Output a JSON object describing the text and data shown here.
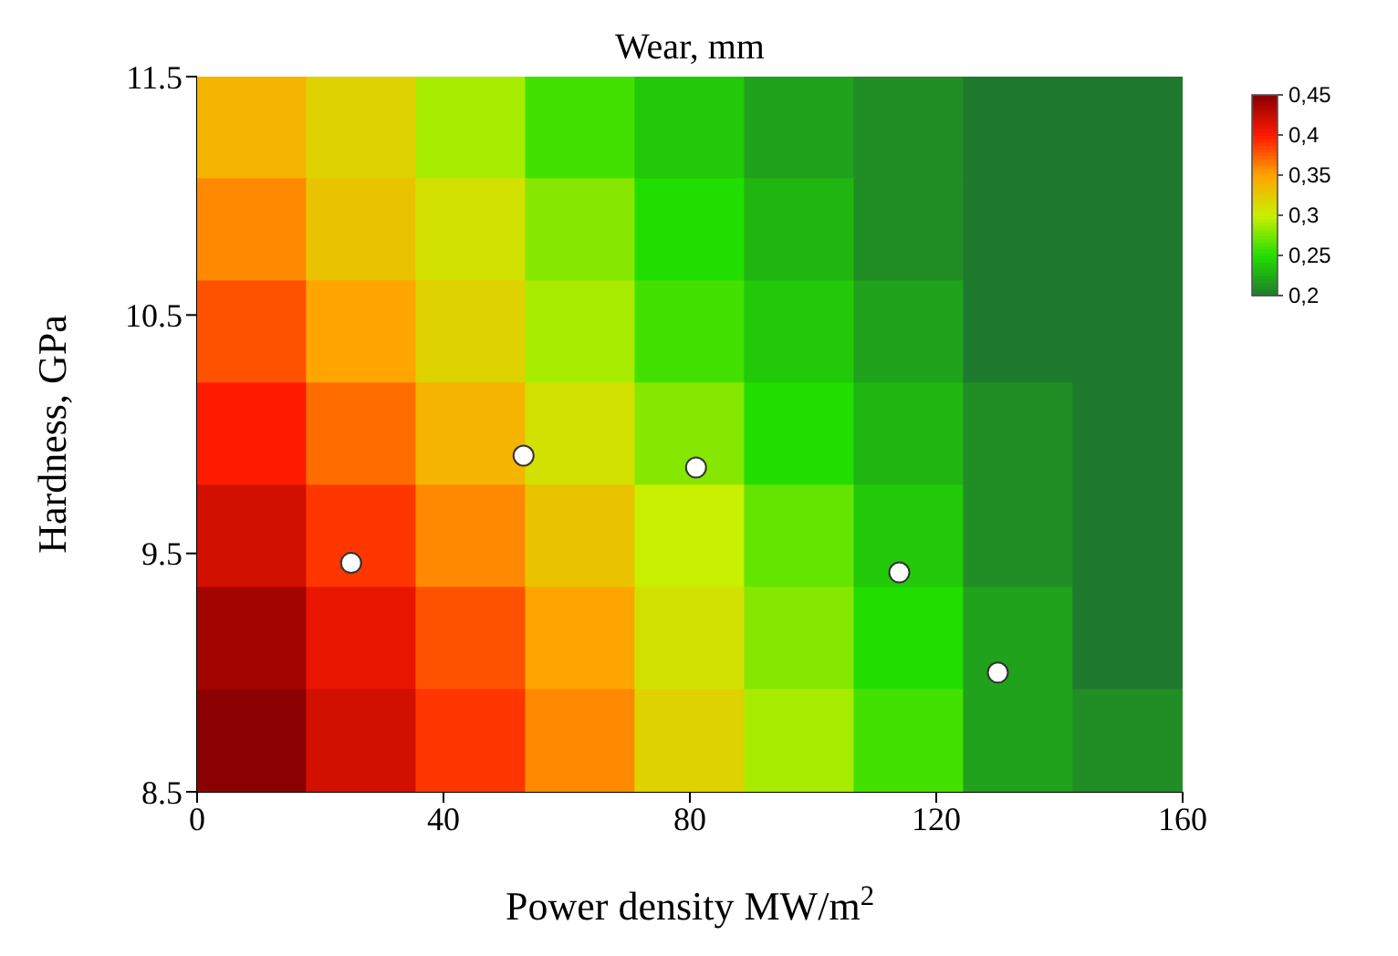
{
  "chart_data": {
    "type": "heatmap",
    "title": "Wear, mm",
    "xlabel": "Power density MW/m$^{2}$",
    "ylabel": "Hardness, GPa",
    "xlim": [
      0,
      160
    ],
    "ylim": [
      8.5,
      11.5
    ],
    "xticks": [
      0,
      40,
      80,
      120,
      160
    ],
    "yticks": [
      8.5,
      9.5,
      10.5,
      11.5
    ],
    "clim": [
      0.2,
      0.45
    ],
    "cticks": [
      {
        "value": 0.45,
        "label": "0,45"
      },
      {
        "value": 0.4,
        "label": "0,4"
      },
      {
        "value": 0.35,
        "label": "0,35"
      },
      {
        "value": 0.3,
        "label": "0,3"
      },
      {
        "value": 0.25,
        "label": "0,25"
      },
      {
        "value": 0.2,
        "label": "0,2"
      }
    ],
    "colors": [
      "#8b0000",
      "#ff1a00",
      "#ffa500",
      "#c8f000",
      "#22dd00",
      "#1f7a2e"
    ],
    "cells": [
      [
        0.34,
        0.32,
        0.29,
        0.26,
        0.24,
        0.22,
        0.21,
        0.2,
        0.2
      ],
      [
        0.36,
        0.33,
        0.31,
        0.28,
        0.25,
        0.23,
        0.21,
        0.2,
        0.2
      ],
      [
        0.38,
        0.35,
        0.32,
        0.29,
        0.26,
        0.24,
        0.22,
        0.2,
        0.2
      ],
      [
        0.4,
        0.37,
        0.34,
        0.31,
        0.28,
        0.25,
        0.23,
        0.21,
        0.2
      ],
      [
        0.42,
        0.39,
        0.36,
        0.33,
        0.3,
        0.27,
        0.24,
        0.21,
        0.2
      ],
      [
        0.44,
        0.41,
        0.38,
        0.35,
        0.31,
        0.28,
        0.25,
        0.22,
        0.2
      ],
      [
        0.45,
        0.42,
        0.39,
        0.36,
        0.32,
        0.29,
        0.26,
        0.22,
        0.21
      ]
    ],
    "series": [
      {
        "type": "scatter",
        "x": [
          25,
          53,
          81,
          114,
          130
        ],
        "values": [
          9.46,
          9.91,
          9.86,
          9.42,
          9.0
        ],
        "color": "#ffffff",
        "marker": "circle"
      }
    ]
  }
}
